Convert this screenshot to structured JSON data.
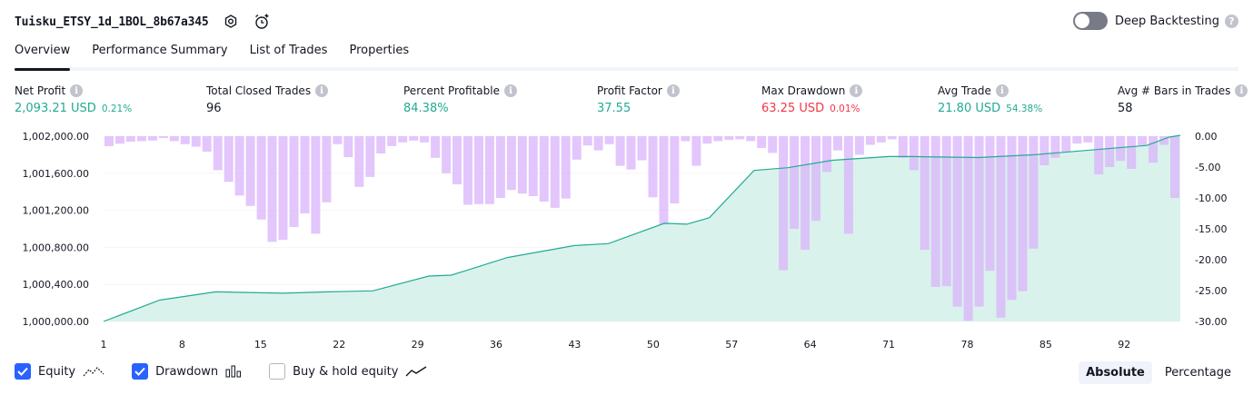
{
  "header": {
    "strategy_name": "Tuisku_ETSY_1d_1BOL_8b67a345",
    "deep_backtesting_label": "Deep Backtesting"
  },
  "tabs": [
    {
      "label": "Overview"
    },
    {
      "label": "Performance Summary"
    },
    {
      "label": "List of Trades"
    },
    {
      "label": "Properties"
    }
  ],
  "metrics": {
    "net_profit": {
      "label": "Net Profit",
      "value": "2,093.21 USD",
      "sub": "0.21%"
    },
    "total_closed_trades": {
      "label": "Total Closed Trades",
      "value": "96"
    },
    "percent_profitable": {
      "label": "Percent Profitable",
      "value": "84.38%"
    },
    "profit_factor": {
      "label": "Profit Factor",
      "value": "37.55"
    },
    "max_drawdown": {
      "label": "Max Drawdown",
      "value": "63.25 USD",
      "sub": "0.01%"
    },
    "avg_trade": {
      "label": "Avg Trade",
      "value": "21.80 USD",
      "sub": "54.38%"
    },
    "avg_bars": {
      "label": "Avg # Bars in Trades",
      "value": "58"
    }
  },
  "legend": {
    "equity": "Equity",
    "drawdown": "Drawdown",
    "buy_hold": "Buy & hold equity"
  },
  "view_modes": {
    "absolute": "Absolute",
    "percentage": "Percentage"
  },
  "colors": {
    "equity_line": "#22ab94",
    "equity_fill": "#d6f1ea",
    "drawdown_bar": "#d9b3fb",
    "accent": "#2962ff",
    "profit": "#22ab94",
    "loss": "#f23645"
  },
  "chart_data": {
    "type": "area",
    "x_ticks": [
      "1",
      "8",
      "15",
      "22",
      "29",
      "36",
      "43",
      "50",
      "57",
      "64",
      "71",
      "78",
      "85",
      "92"
    ],
    "x_range": [
      1,
      97
    ],
    "y_left_ticks": [
      "1,002,000.00",
      "1,001,600.00",
      "1,001,200.00",
      "1,000,800.00",
      "1,000,400.00",
      "1,000,000.00"
    ],
    "y_left_range": [
      1000000,
      1002000
    ],
    "y_right_ticks": [
      "0.00",
      "-5.00",
      "-10.00",
      "-15.00",
      "-20.00",
      "-25.00",
      "-30.00"
    ],
    "y_right_range": [
      -30,
      0
    ],
    "equity": [
      [
        1,
        1000000
      ],
      [
        6,
        1000230
      ],
      [
        11,
        1000320
      ],
      [
        17,
        1000305
      ],
      [
        21,
        1000320
      ],
      [
        25,
        1000330
      ],
      [
        30,
        1000490
      ],
      [
        32,
        1000500
      ],
      [
        37,
        1000690
      ],
      [
        43,
        1000820
      ],
      [
        46,
        1000840
      ],
      [
        51,
        1001060
      ],
      [
        53,
        1001050
      ],
      [
        55,
        1001120
      ],
      [
        59,
        1001630
      ],
      [
        62,
        1001660
      ],
      [
        66,
        1001740
      ],
      [
        71,
        1001780
      ],
      [
        73,
        1001780
      ],
      [
        79,
        1001770
      ],
      [
        84,
        1001800
      ],
      [
        87,
        1001830
      ],
      [
        92,
        1001880
      ],
      [
        94,
        1001900
      ],
      [
        96,
        1001990
      ],
      [
        97,
        1002010
      ]
    ],
    "drawdown": [
      -1.6,
      -1.2,
      -0.9,
      -0.8,
      -0.7,
      -0.3,
      -0.8,
      -1.3,
      -1.7,
      -2.5,
      -5.5,
      -7.4,
      -9.6,
      -11.3,
      -13.5,
      -17.1,
      -16.8,
      -14.7,
      -12.5,
      -15.8,
      -10.7,
      -1.3,
      -3.4,
      -8.2,
      -6.6,
      -2.8,
      -1.6,
      -1.0,
      -0.7,
      -1.0,
      -3.5,
      -6.0,
      -7.8,
      -11.1,
      -11.0,
      -11.0,
      -10.0,
      -8.7,
      -9.3,
      -9.7,
      -10.6,
      -11.6,
      -10.1,
      -3.8,
      -1.5,
      -2.3,
      -1.3,
      -4.8,
      -5.4,
      -3.9,
      -9.9,
      -14.3,
      -10.9,
      -0.8,
      -4.8,
      -1.2,
      -0.8,
      -0.6,
      -0.5,
      -0.8,
      -1.9,
      -2.7,
      -21.7,
      -15.0,
      -18.4,
      -13.7,
      -5.8,
      -2.3,
      -15.8,
      -3.0,
      -1.4,
      -1.0,
      -0.5,
      -3.5,
      -5.5,
      -18.4,
      -24.4,
      -24.3,
      -27.6,
      -29.9,
      -27.6,
      -21.8,
      -29.4,
      -26.5,
      -25.1,
      -18.2,
      -4.7,
      -3.5,
      -2.5,
      -1.2,
      -1.0,
      -6.2,
      -5.0,
      -4.0,
      -5.3,
      -1.5,
      -4.3,
      -1.4,
      -10.0
    ]
  }
}
